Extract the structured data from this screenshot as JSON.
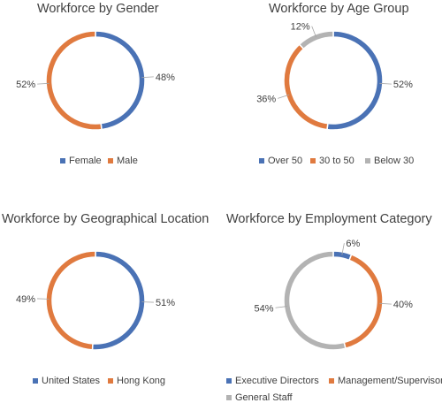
{
  "colors": {
    "blue": "#4a72b5",
    "orange": "#e07a3f",
    "gray": "#b3b3b3",
    "label_line": "#a6a6a6"
  },
  "chart_data": [
    {
      "type": "pie",
      "donut": true,
      "title": "Workforce by Gender",
      "slices": [
        {
          "name": "Female",
          "value": 48,
          "label": "48%",
          "color": "#4a72b5"
        },
        {
          "name": "Male",
          "value": 52,
          "label": "52%",
          "color": "#e07a3f"
        }
      ],
      "legend": [
        "Female",
        "Male"
      ],
      "legend_position": "bottom"
    },
    {
      "type": "pie",
      "donut": true,
      "title": "Workforce by Age Group",
      "slices": [
        {
          "name": "Over 50",
          "value": 52,
          "label": "52%",
          "color": "#4a72b5"
        },
        {
          "name": "30 to 50",
          "value": 36,
          "label": "36%",
          "color": "#e07a3f"
        },
        {
          "name": "Below 30",
          "value": 12,
          "label": "12%",
          "color": "#b3b3b3"
        }
      ],
      "legend": [
        "Over 50",
        "30 to 50",
        "Below 30"
      ],
      "legend_position": "bottom"
    },
    {
      "type": "pie",
      "donut": true,
      "title": "Workforce by Geographical Location",
      "slices": [
        {
          "name": "United States",
          "value": 51,
          "label": "51%",
          "color": "#4a72b5"
        },
        {
          "name": "Hong Kong",
          "value": 49,
          "label": "49%",
          "color": "#e07a3f"
        }
      ],
      "legend": [
        "United States",
        "Hong Kong"
      ],
      "legend_position": "bottom"
    },
    {
      "type": "pie",
      "donut": true,
      "title": "Workforce by Employment Category",
      "slices": [
        {
          "name": "Executive Directors",
          "value": 6,
          "label": "6%",
          "color": "#4a72b5"
        },
        {
          "name": "Management/Supervisor",
          "value": 40,
          "label": "40%",
          "color": "#e07a3f"
        },
        {
          "name": "General Staff",
          "value": 54,
          "label": "54%",
          "color": "#b3b3b3"
        }
      ],
      "legend": [
        "Executive Directors",
        "Management/Supervisor",
        "General Staff"
      ],
      "legend_position": "bottom"
    }
  ]
}
